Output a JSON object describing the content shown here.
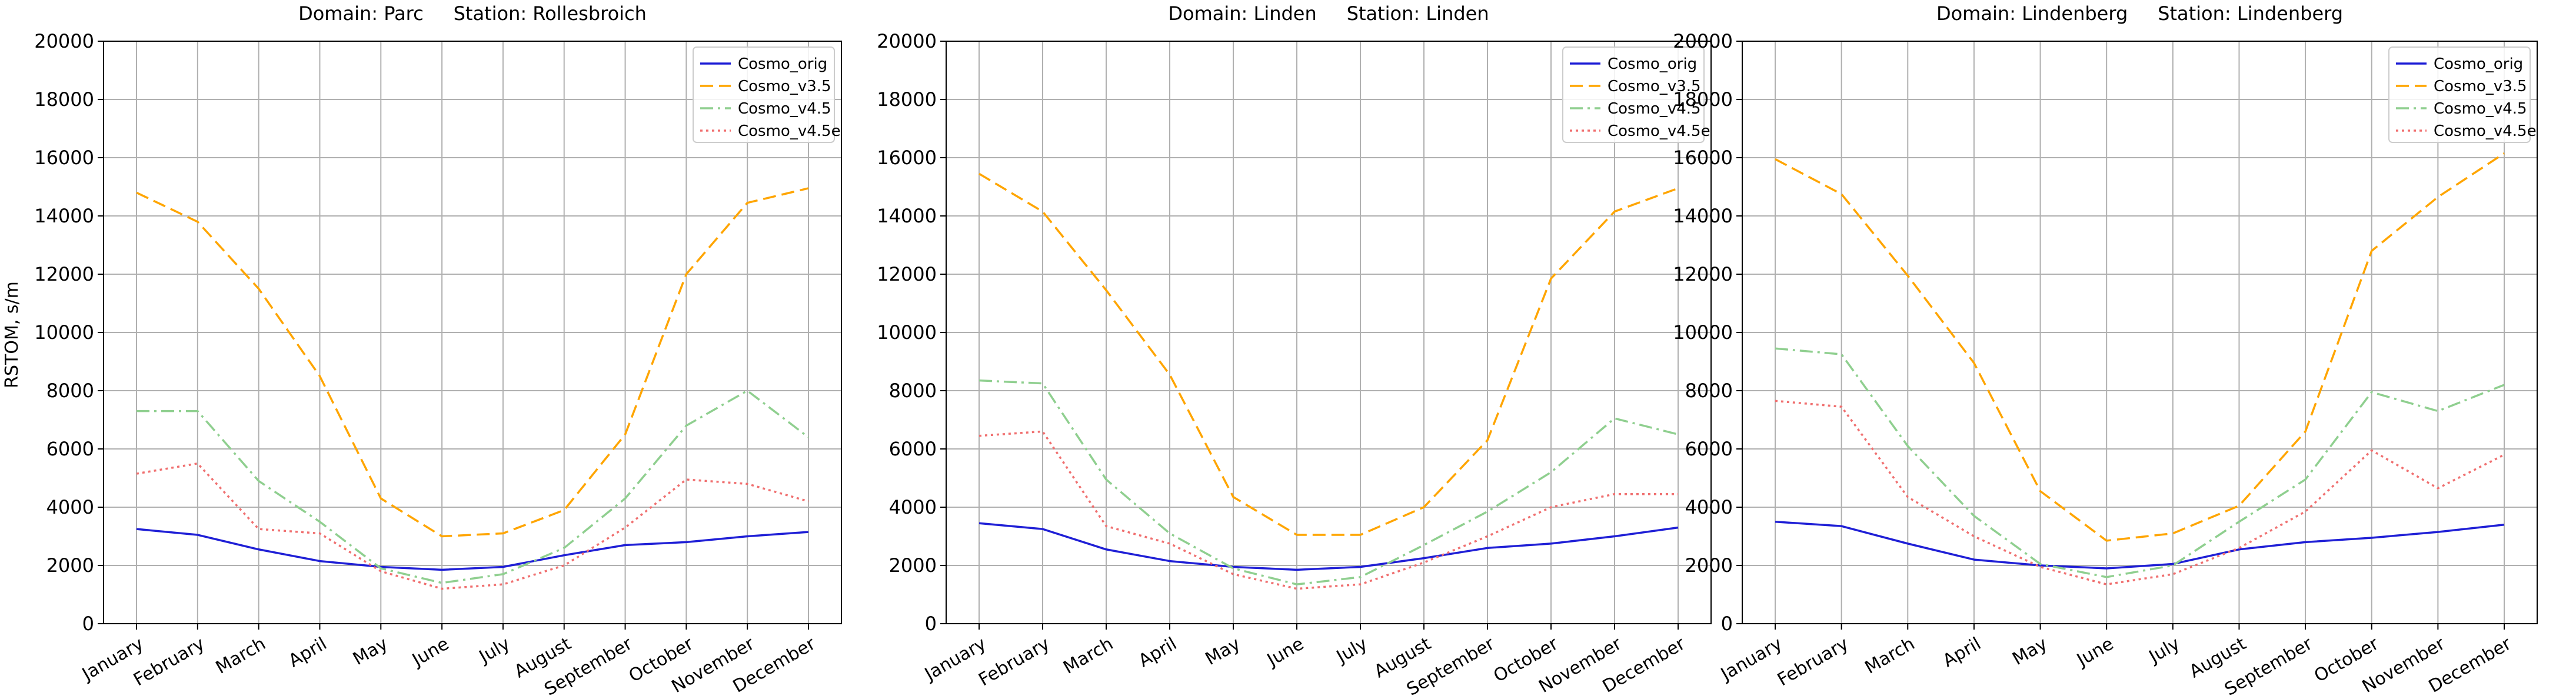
{
  "figure": {
    "ylabel": "RSTOM, s/m",
    "months": [
      "January",
      "February",
      "March",
      "April",
      "May",
      "June",
      "July",
      "August",
      "September",
      "October",
      "November",
      "December"
    ],
    "yticks": [
      0,
      2000,
      4000,
      6000,
      8000,
      10000,
      12000,
      14000,
      16000,
      18000,
      20000
    ],
    "colors": {
      "Cosmo_orig": "#1f1fd6",
      "Cosmo_v3.5": "#ffa500",
      "Cosmo_v4.5": "#8fcf8f",
      "Cosmo_v4.5e": "#f07070"
    },
    "dash": {
      "Cosmo_orig": "solid",
      "Cosmo_v3.5": "dashed",
      "Cosmo_v4.5": "dash-dot",
      "Cosmo_v4.5e": "dotted"
    }
  },
  "chart_data": [
    {
      "type": "line",
      "title": "Domain: Parc     Station: Rollesbroich",
      "ylabel": "RSTOM, s/m",
      "ylim": [
        0,
        20000
      ],
      "grid": true,
      "legend": "top-right",
      "categories": [
        "January",
        "February",
        "March",
        "April",
        "May",
        "June",
        "July",
        "August",
        "September",
        "October",
        "November",
        "December"
      ],
      "series": [
        {
          "name": "Cosmo_orig",
          "values": [
            3250,
            3050,
            2550,
            2150,
            1950,
            1850,
            1950,
            2350,
            2700,
            2800,
            3000,
            3150
          ]
        },
        {
          "name": "Cosmo_v3.5",
          "values": [
            14800,
            13800,
            11500,
            8500,
            4300,
            3000,
            3100,
            3900,
            6500,
            12000,
            14450,
            14950
          ]
        },
        {
          "name": "Cosmo_v4.5",
          "values": [
            7300,
            7300,
            4900,
            3500,
            1900,
            1400,
            1700,
            2600,
            4300,
            6800,
            8000,
            6400
          ]
        },
        {
          "name": "Cosmo_v4.5e",
          "values": [
            5150,
            5500,
            3250,
            3100,
            1800,
            1200,
            1350,
            2000,
            3300,
            4950,
            4800,
            4200
          ]
        }
      ]
    },
    {
      "type": "line",
      "title": "Domain: Linden     Station: Linden",
      "ylim": [
        0,
        20000
      ],
      "grid": true,
      "legend": "top-right",
      "categories": [
        "January",
        "February",
        "March",
        "April",
        "May",
        "June",
        "July",
        "August",
        "September",
        "October",
        "November",
        "December"
      ],
      "series": [
        {
          "name": "Cosmo_orig",
          "values": [
            3450,
            3250,
            2550,
            2150,
            1950,
            1850,
            1950,
            2250,
            2600,
            2750,
            3000,
            3300
          ]
        },
        {
          "name": "Cosmo_v3.5",
          "values": [
            15450,
            14150,
            11450,
            8550,
            4350,
            3050,
            3050,
            4000,
            6300,
            11850,
            14150,
            14950
          ]
        },
        {
          "name": "Cosmo_v4.5",
          "values": [
            8350,
            8250,
            4950,
            3100,
            1900,
            1350,
            1600,
            2700,
            3850,
            5200,
            7050,
            6500
          ]
        },
        {
          "name": "Cosmo_v4.5e",
          "values": [
            6450,
            6600,
            3350,
            2750,
            1700,
            1200,
            1350,
            2100,
            3000,
            4000,
            4450,
            4450
          ]
        }
      ]
    },
    {
      "type": "line",
      "title": "Domain: Lindenberg     Station: Lindenberg",
      "ylim": [
        0,
        20000
      ],
      "grid": true,
      "legend": "top-right",
      "categories": [
        "January",
        "February",
        "March",
        "April",
        "May",
        "June",
        "July",
        "August",
        "September",
        "October",
        "November",
        "December"
      ],
      "series": [
        {
          "name": "Cosmo_orig",
          "values": [
            3500,
            3350,
            2750,
            2200,
            2000,
            1900,
            2050,
            2550,
            2800,
            2950,
            3150,
            3400
          ]
        },
        {
          "name": "Cosmo_v3.5",
          "values": [
            15950,
            14750,
            11950,
            8950,
            4550,
            2850,
            3100,
            4050,
            6600,
            12800,
            14650,
            16150
          ]
        },
        {
          "name": "Cosmo_v4.5",
          "values": [
            9450,
            9250,
            6100,
            3700,
            2050,
            1600,
            2000,
            3500,
            4950,
            7950,
            7300,
            8200
          ]
        },
        {
          "name": "Cosmo_v4.5e",
          "values": [
            7650,
            7450,
            4350,
            3000,
            1950,
            1350,
            1700,
            2600,
            3850,
            5950,
            4650,
            5800
          ]
        }
      ]
    }
  ]
}
